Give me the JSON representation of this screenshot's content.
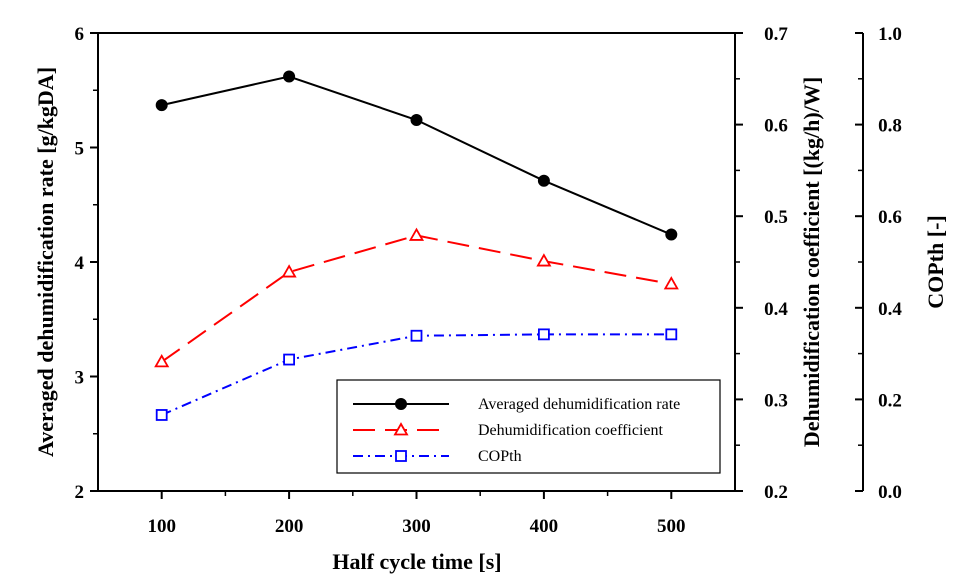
{
  "chart_data": {
    "type": "line",
    "x": [
      100,
      200,
      300,
      400,
      500
    ],
    "xlabel": "Half cycle time [s]",
    "xlim": [
      50,
      550
    ],
    "xticks": [
      100,
      200,
      300,
      400,
      500
    ],
    "grid": false,
    "legend_position": "bottom-right",
    "axes": [
      {
        "id": "y1",
        "label": "Averaged dehumidification rate [g/kgDA]",
        "range": [
          2,
          6
        ],
        "ticks": [
          2,
          3,
          4,
          5,
          6
        ],
        "tick_labels": [
          "2",
          "3",
          "4",
          "5",
          "6"
        ]
      },
      {
        "id": "y2",
        "label": "Dehumidification coefficient [(kg/h)/W]",
        "range": [
          0.2,
          0.7
        ],
        "ticks": [
          0.2,
          0.3,
          0.4,
          0.5,
          0.6,
          0.7
        ],
        "tick_labels": [
          "0.2",
          "0.3",
          "0.4",
          "0.5",
          "0.6",
          "0.7"
        ]
      },
      {
        "id": "y3",
        "label": "COPth [-]",
        "range": [
          0.0,
          1.0
        ],
        "ticks": [
          0.0,
          0.2,
          0.4,
          0.6,
          0.8,
          1.0
        ],
        "tick_labels": [
          "0.0",
          "0.2",
          "0.4",
          "0.6",
          "0.8",
          "1.0"
        ]
      }
    ],
    "series": [
      {
        "name": "Averaged dehumidification rate",
        "axis": "y1",
        "color": "#000000",
        "marker": "filled-circle",
        "line_style": "solid",
        "values": [
          5.37,
          5.62,
          5.24,
          4.71,
          4.24
        ]
      },
      {
        "name": "Dehumidification coefficient",
        "axis": "y2",
        "color": "#ff0000",
        "marker": "open-triangle",
        "line_style": "dash",
        "values": [
          0.341,
          0.439,
          0.479,
          0.451,
          0.426
        ]
      },
      {
        "name": "COPth",
        "axis": "y3",
        "color": "#0000ff",
        "marker": "open-square",
        "line_style": "dash-dot",
        "values": [
          0.166,
          0.287,
          0.339,
          0.342,
          0.342
        ]
      }
    ]
  }
}
